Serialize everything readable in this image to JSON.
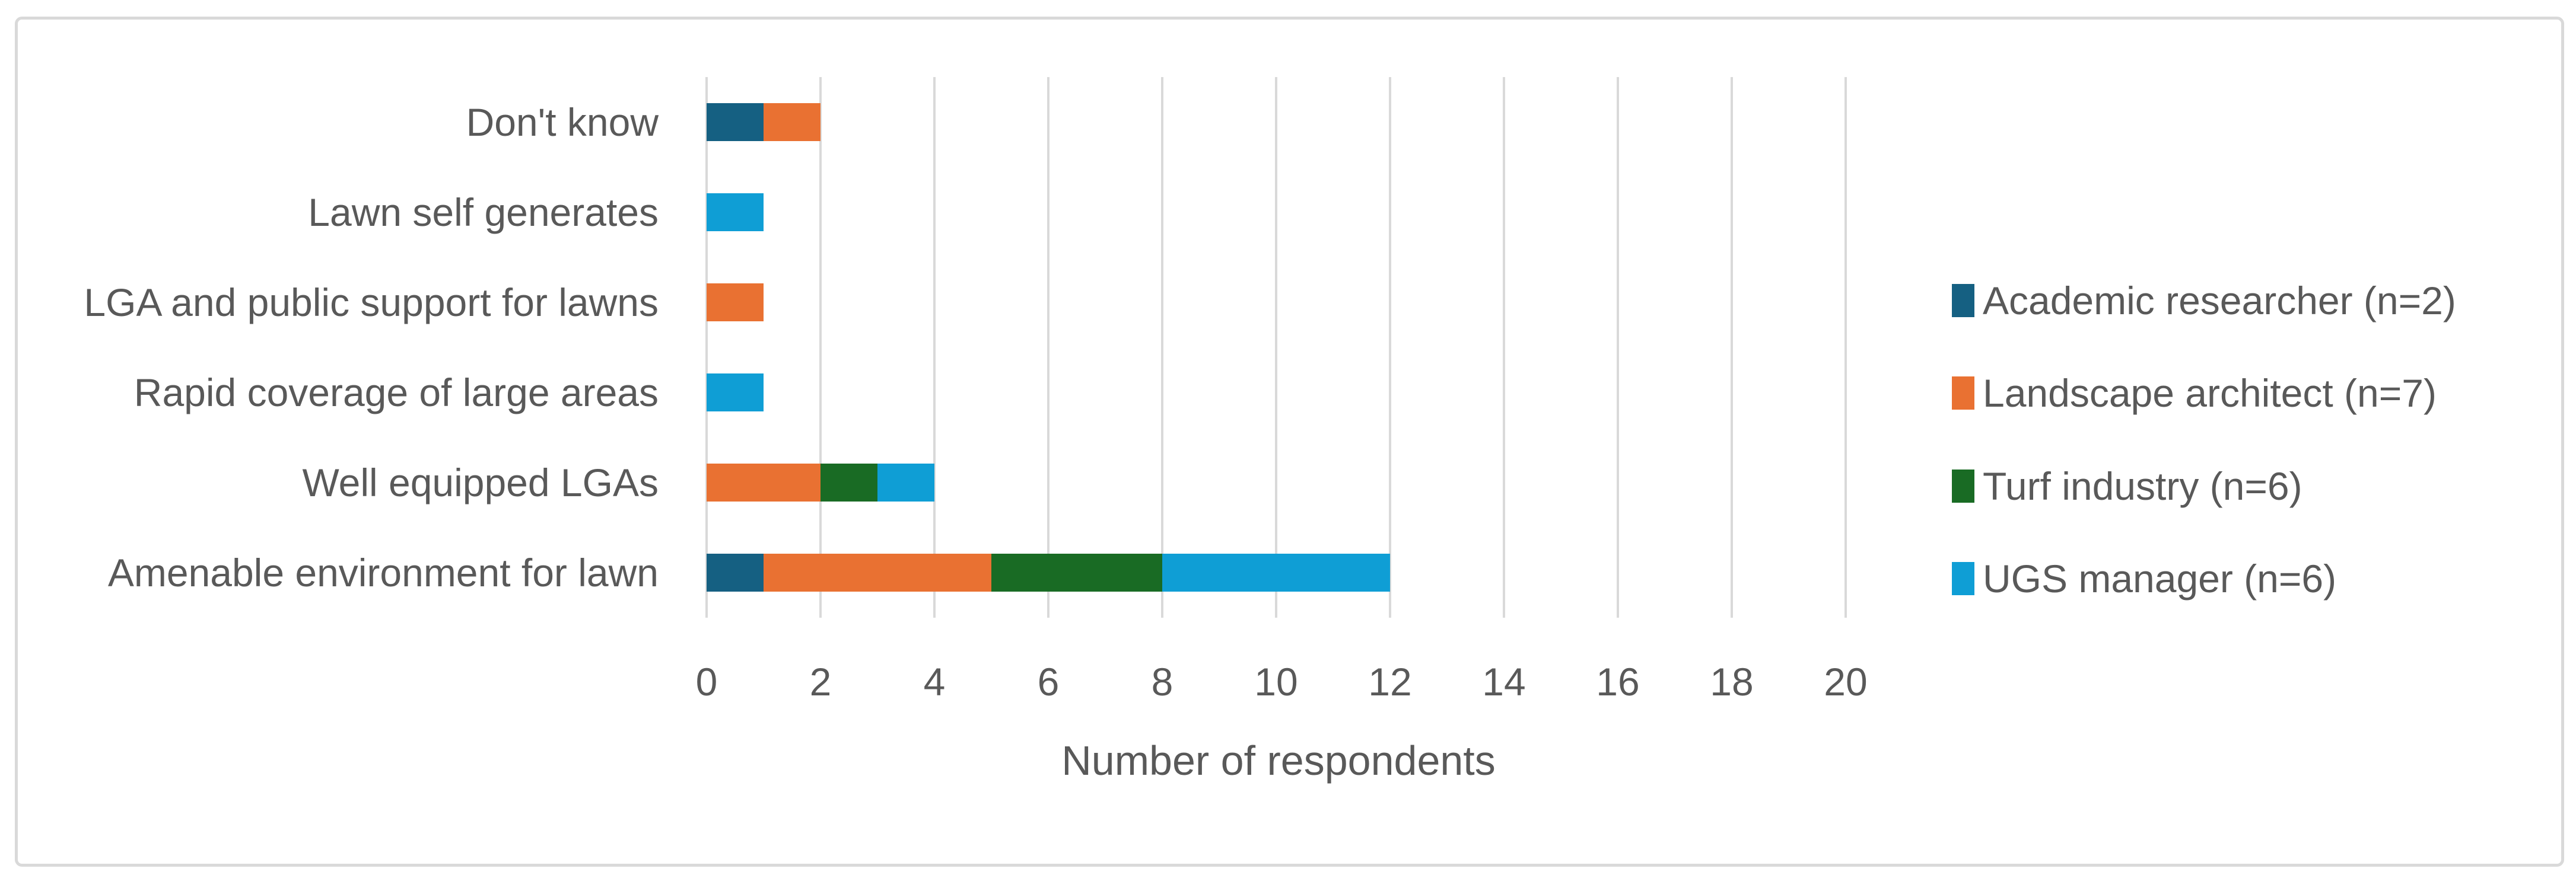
{
  "chart_data": {
    "type": "bar",
    "orientation": "horizontal",
    "stacked": true,
    "categories": [
      "Don't know",
      "Lawn self generates",
      "LGA and public support for lawns",
      "Rapid coverage of large areas",
      "Well equipped LGAs",
      "Amenable environment for lawn"
    ],
    "series": [
      {
        "name": "Academic researcher (n=2)",
        "color": "#156082",
        "values": [
          1,
          0,
          0,
          0,
          0,
          1
        ]
      },
      {
        "name": "Landscape architect (n=7)",
        "color": "#E97132",
        "values": [
          1,
          0,
          1,
          0,
          2,
          4
        ]
      },
      {
        "name": "Turf industry (n=6)",
        "color": "#196B24",
        "values": [
          0,
          0,
          0,
          0,
          1,
          3
        ]
      },
      {
        "name": "UGS manager (n=6)",
        "color": "#0F9ED5",
        "values": [
          0,
          1,
          0,
          1,
          1,
          4
        ]
      }
    ],
    "totals": [
      2,
      1,
      1,
      1,
      4,
      12
    ],
    "xlabel": "Number of respondents",
    "ylabel": "",
    "xlim": [
      0,
      20
    ],
    "xticks": [
      0,
      2,
      4,
      6,
      8,
      10,
      12,
      14,
      16,
      18,
      20
    ],
    "grid": true,
    "legend_position": "right"
  },
  "colors": {
    "gridline": "#D9D9D9",
    "frame_border": "#D9D9D9",
    "text": "#595959",
    "background": "#FFFFFF"
  }
}
